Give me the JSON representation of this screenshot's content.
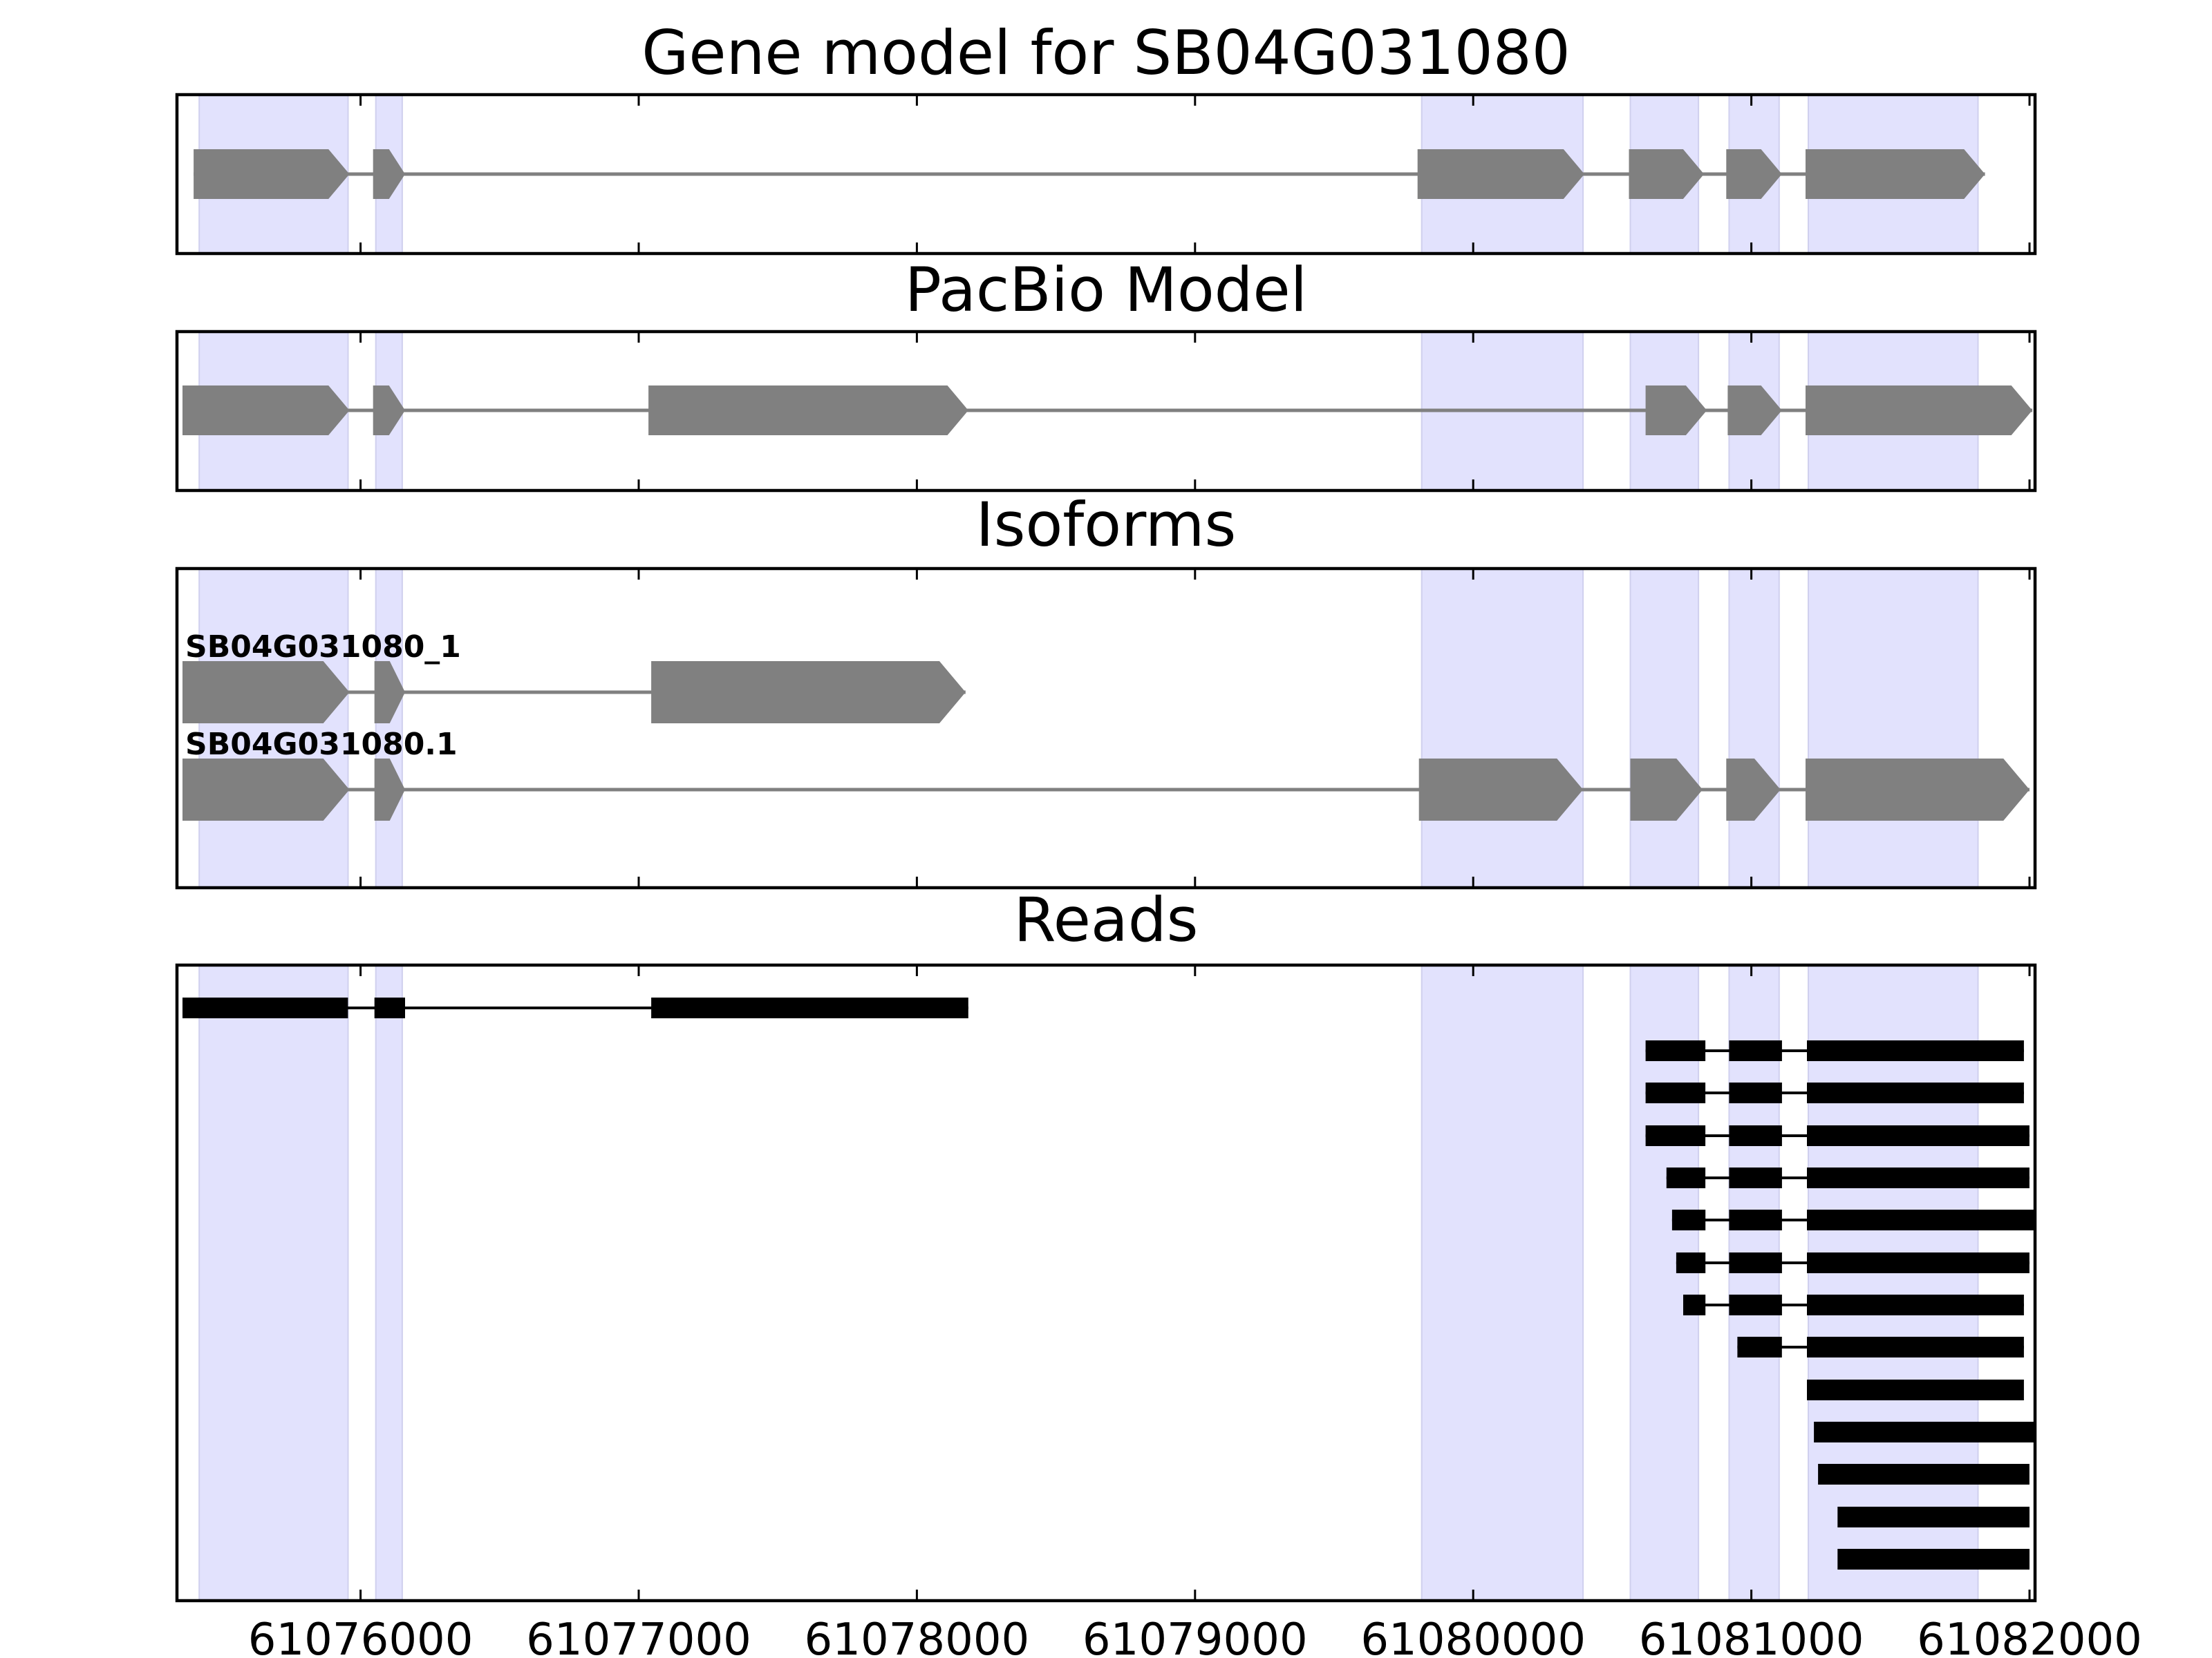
{
  "chart_data": {
    "type": "gene-structure",
    "x_range": [
      61075340,
      61082020
    ],
    "x_ticks": [
      61076000,
      61077000,
      61078000,
      61079000,
      61080000,
      61081000,
      61082000
    ],
    "colors": {
      "exon_fill": "#808080",
      "intron_line": "#808080",
      "read_color": "#000000",
      "exon_band": "#e2e2fd"
    },
    "exon_bands": [
      [
        61075420,
        61075955
      ],
      [
        61076055,
        61076150
      ],
      [
        61079815,
        61080395
      ],
      [
        61080565,
        61080810
      ],
      [
        61080920,
        61081100
      ],
      [
        61081205,
        61081815
      ]
    ],
    "panels": [
      {
        "id": "gene-model",
        "title": "Gene model for SB04G031080",
        "isoforms": [
          {
            "label": "",
            "exons": [
              [
                61075400,
                61075960
              ],
              [
                61076045,
                61076160
              ],
              [
                61079800,
                61080400
              ],
              [
                61080560,
                61080830
              ],
              [
                61080910,
                61081110
              ],
              [
                61081195,
                61081840
              ]
            ]
          }
        ]
      },
      {
        "id": "pacbio-model",
        "title": "PacBio Model",
        "isoforms": [
          {
            "label": "",
            "exons": [
              [
                61075360,
                61075960
              ],
              [
                61076045,
                61076160
              ],
              [
                61077035,
                61078185
              ],
              [
                61080620,
                61080840
              ],
              [
                61080915,
                61081110
              ],
              [
                61081195,
                61082010
              ]
            ]
          }
        ]
      },
      {
        "id": "isoforms",
        "title": "Isoforms",
        "isoforms": [
          {
            "label": "SB04G031080_1",
            "exons": [
              [
                61075360,
                61075960
              ],
              [
                61076050,
                61076160
              ],
              [
                61077045,
                61078175
              ]
            ]
          },
          {
            "label": "SB04G031080.1",
            "exons": [
              [
                61075360,
                61075960
              ],
              [
                61076050,
                61076160
              ],
              [
                61079805,
                61080395
              ],
              [
                61080565,
                61080825
              ],
              [
                61080910,
                61081105
              ],
              [
                61081195,
                61082000
              ]
            ]
          }
        ]
      },
      {
        "id": "reads",
        "title": "Reads",
        "reads": [
          [
            [
              61075360,
              61075955
            ],
            [
              61076050,
              61076160
            ],
            [
              61077045,
              61078185
            ]
          ],
          [
            [
              61080620,
              61080835
            ],
            [
              61080920,
              61081110
            ],
            [
              61081200,
              61081980
            ]
          ],
          [
            [
              61080620,
              61080835
            ],
            [
              61080920,
              61081110
            ],
            [
              61081200,
              61081980
            ]
          ],
          [
            [
              61080620,
              61080835
            ],
            [
              61080920,
              61081110
            ],
            [
              61081200,
              61082000
            ]
          ],
          [
            [
              61080695,
              61080835
            ],
            [
              61080920,
              61081110
            ],
            [
              61081200,
              61082000
            ]
          ],
          [
            [
              61080715,
              61080835
            ],
            [
              61080920,
              61081110
            ],
            [
              61081200,
              61082020
            ]
          ],
          [
            [
              61080730,
              61080835
            ],
            [
              61080920,
              61081110
            ],
            [
              61081200,
              61082000
            ]
          ],
          [
            [
              61080755,
              61080835
            ],
            [
              61080920,
              61081110
            ],
            [
              61081200,
              61081980
            ]
          ],
          [
            [
              61080950,
              61081110
            ],
            [
              61081200,
              61081980
            ]
          ],
          [
            [
              61081200,
              61081980
            ]
          ],
          [
            [
              61081225,
              61082020
            ]
          ],
          [
            [
              61081240,
              61082000
            ]
          ],
          [
            [
              61081310,
              61082000
            ]
          ],
          [
            [
              61081310,
              61082000
            ]
          ]
        ]
      }
    ]
  }
}
